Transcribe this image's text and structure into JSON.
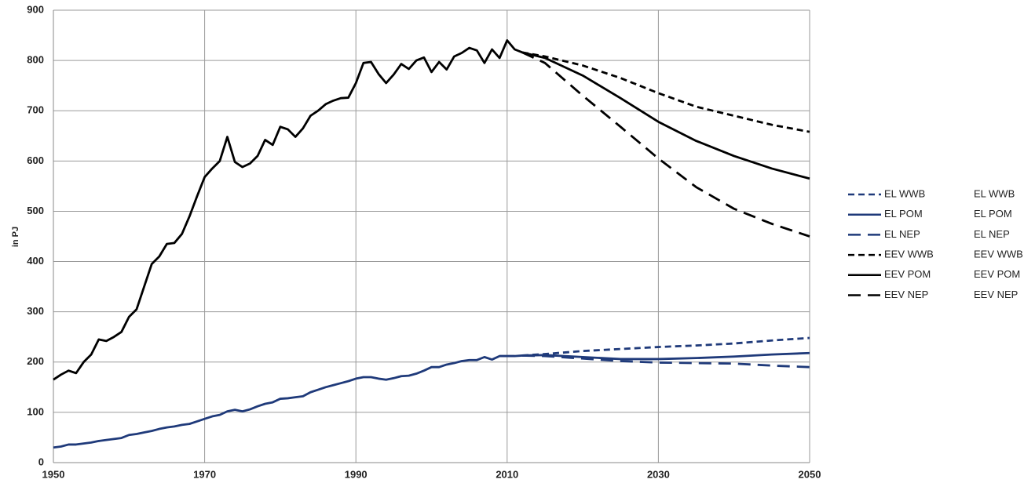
{
  "chart_data": {
    "type": "line",
    "y_label": "in PJ",
    "x": [
      1950,
      1951,
      1952,
      1953,
      1954,
      1955,
      1956,
      1957,
      1958,
      1959,
      1960,
      1961,
      1962,
      1963,
      1964,
      1965,
      1966,
      1967,
      1968,
      1969,
      1970,
      1971,
      1972,
      1973,
      1974,
      1975,
      1976,
      1977,
      1978,
      1979,
      1980,
      1981,
      1982,
      1983,
      1984,
      1985,
      1986,
      1987,
      1988,
      1989,
      1990,
      1991,
      1992,
      1993,
      1994,
      1995,
      1996,
      1997,
      1998,
      1999,
      2000,
      2001,
      2002,
      2003,
      2004,
      2005,
      2006,
      2007,
      2008,
      2009,
      2010,
      2011,
      2012,
      2015,
      2020,
      2025,
      2030,
      2035,
      2040,
      2045,
      2050
    ],
    "series": [
      {
        "name": "EL WWB",
        "color": "#1f3a7a",
        "linestyle": "dashed",
        "values": [
          null,
          null,
          null,
          null,
          null,
          null,
          null,
          null,
          null,
          null,
          null,
          null,
          null,
          null,
          null,
          null,
          null,
          null,
          null,
          null,
          null,
          null,
          null,
          null,
          null,
          null,
          null,
          null,
          null,
          null,
          null,
          null,
          null,
          null,
          null,
          null,
          null,
          null,
          null,
          null,
          null,
          null,
          null,
          null,
          null,
          null,
          null,
          null,
          null,
          null,
          null,
          null,
          null,
          null,
          null,
          null,
          null,
          null,
          null,
          null,
          null,
          null,
          213,
          216,
          222,
          226,
          230,
          233,
          237,
          243,
          248
        ]
      },
      {
        "name": "EL POM",
        "color": "#1f3a7a",
        "linestyle": "solid",
        "values": [
          30,
          32,
          36,
          36,
          38,
          40,
          43,
          45,
          47,
          49,
          55,
          57,
          60,
          63,
          67,
          70,
          72,
          75,
          77,
          82,
          87,
          92,
          95,
          102,
          105,
          102,
          106,
          112,
          117,
          120,
          127,
          128,
          130,
          132,
          140,
          145,
          150,
          154,
          158,
          162,
          167,
          170,
          170,
          167,
          165,
          168,
          172,
          173,
          177,
          183,
          190,
          190,
          195,
          198,
          202,
          204,
          204,
          210,
          205,
          212,
          212,
          212,
          213,
          214,
          210,
          206,
          206,
          208,
          211,
          215,
          218
        ]
      },
      {
        "name": "EL NEP",
        "color": "#1f3a7a",
        "linestyle": "longdash",
        "values": [
          null,
          null,
          null,
          null,
          null,
          null,
          null,
          null,
          null,
          null,
          null,
          null,
          null,
          null,
          null,
          null,
          null,
          null,
          null,
          null,
          null,
          null,
          null,
          null,
          null,
          null,
          null,
          null,
          null,
          null,
          null,
          null,
          null,
          null,
          null,
          null,
          null,
          null,
          null,
          null,
          null,
          null,
          null,
          null,
          null,
          null,
          null,
          null,
          null,
          null,
          null,
          null,
          null,
          null,
          null,
          null,
          null,
          null,
          null,
          null,
          null,
          null,
          213,
          212,
          207,
          202,
          199,
          198,
          197,
          193,
          190
        ]
      },
      {
        "name": "EEV WWB",
        "color": "#000000",
        "linestyle": "dashed",
        "values": [
          null,
          null,
          null,
          null,
          null,
          null,
          null,
          null,
          null,
          null,
          null,
          null,
          null,
          null,
          null,
          null,
          null,
          null,
          null,
          null,
          null,
          null,
          null,
          null,
          null,
          null,
          null,
          null,
          null,
          null,
          null,
          null,
          null,
          null,
          null,
          null,
          null,
          null,
          null,
          null,
          null,
          null,
          null,
          null,
          null,
          null,
          null,
          null,
          null,
          null,
          null,
          null,
          null,
          null,
          null,
          null,
          null,
          null,
          null,
          null,
          null,
          null,
          816,
          808,
          790,
          765,
          735,
          708,
          690,
          672,
          658
        ]
      },
      {
        "name": "EEV POM",
        "color": "#000000",
        "linestyle": "solid",
        "values": [
          165,
          175,
          183,
          178,
          200,
          215,
          245,
          242,
          250,
          260,
          290,
          305,
          350,
          395,
          410,
          435,
          437,
          455,
          490,
          530,
          568,
          585,
          600,
          648,
          598,
          588,
          595,
          610,
          642,
          632,
          668,
          663,
          648,
          665,
          690,
          700,
          713,
          720,
          725,
          726,
          755,
          795,
          797,
          773,
          755,
          772,
          793,
          783,
          800,
          806,
          777,
          797,
          782,
          808,
          815,
          825,
          820,
          795,
          822,
          805,
          840,
          822,
          816,
          805,
          770,
          725,
          678,
          640,
          610,
          585,
          565
        ]
      },
      {
        "name": "EEV NEP",
        "color": "#000000",
        "linestyle": "longdash",
        "values": [
          null,
          null,
          null,
          null,
          null,
          null,
          null,
          null,
          null,
          null,
          null,
          null,
          null,
          null,
          null,
          null,
          null,
          null,
          null,
          null,
          null,
          null,
          null,
          null,
          null,
          null,
          null,
          null,
          null,
          null,
          null,
          null,
          null,
          null,
          null,
          null,
          null,
          null,
          null,
          null,
          null,
          null,
          null,
          null,
          null,
          null,
          null,
          null,
          null,
          null,
          null,
          null,
          null,
          null,
          null,
          null,
          null,
          null,
          null,
          null,
          null,
          null,
          816,
          795,
          730,
          668,
          605,
          548,
          505,
          475,
          450
        ]
      }
    ],
    "xlim": [
      1950,
      2050
    ],
    "xticks": [
      1950,
      1970,
      1990,
      2010,
      2030,
      2050
    ],
    "ylim": [
      0,
      900
    ],
    "yticks": [
      0,
      100,
      200,
      300,
      400,
      500,
      600,
      700,
      800,
      900
    ],
    "grid": true,
    "legend": "right"
  }
}
